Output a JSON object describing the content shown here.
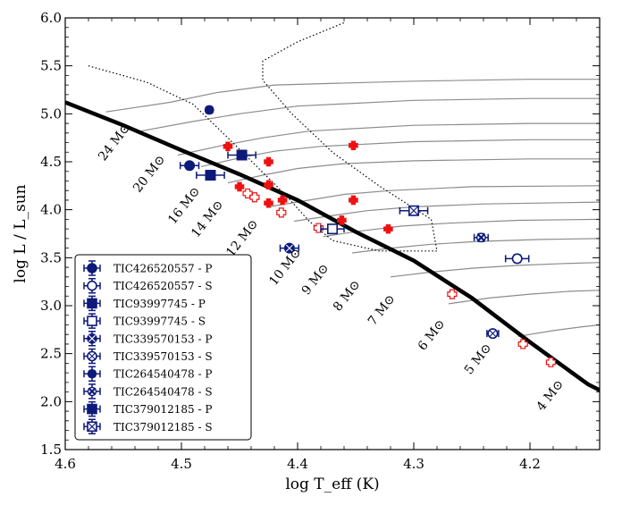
{
  "chart_data": {
    "type": "scatter",
    "title": "",
    "xlabel": "log T_eff (K)",
    "ylabel": "log L / L_sun",
    "xlim": [
      4.6,
      4.14
    ],
    "ylim": [
      1.5,
      6.0
    ],
    "x_ticks": [
      "4.6",
      "4.5",
      "4.4",
      "4.3",
      "4.2"
    ],
    "x_tick_values": [
      4.6,
      4.5,
      4.4,
      4.3,
      4.2
    ],
    "y_ticks": [
      "1.5",
      "2.0",
      "2.5",
      "3.0",
      "3.5",
      "4.0",
      "4.5",
      "5.0",
      "5.5",
      "6.0"
    ],
    "y_tick_values": [
      1.5,
      2.0,
      2.5,
      3.0,
      3.5,
      4.0,
      4.5,
      5.0,
      5.5,
      6.0
    ],
    "zams": [
      [
        4.6,
        5.12
      ],
      [
        4.55,
        4.88
      ],
      [
        4.5,
        4.62
      ],
      [
        4.45,
        4.37
      ],
      [
        4.4,
        4.1
      ],
      [
        4.35,
        3.77
      ],
      [
        4.3,
        3.47
      ],
      [
        4.25,
        3.08
      ],
      [
        4.2,
        2.62
      ],
      [
        4.15,
        2.18
      ],
      [
        4.14,
        2.12
      ]
    ],
    "tracks": [
      {
        "mass": "24 M⊙",
        "label_at": [
          4.555,
          4.68
        ],
        "points": [
          [
            4.565,
            5.02
          ],
          [
            4.51,
            5.12
          ],
          [
            4.47,
            5.22
          ],
          [
            4.42,
            5.3
          ],
          [
            4.3,
            5.34
          ],
          [
            4.2,
            5.36
          ],
          [
            4.14,
            5.36
          ]
        ]
      },
      {
        "mass": "20 M⊙",
        "label_at": [
          4.525,
          4.35
        ],
        "points": [
          [
            4.535,
            4.82
          ],
          [
            4.49,
            4.92
          ],
          [
            4.45,
            5.0
          ],
          [
            4.4,
            5.08
          ],
          [
            4.3,
            5.14
          ],
          [
            4.2,
            5.16
          ],
          [
            4.14,
            5.16
          ]
        ]
      },
      {
        "mass": "16 M⊙",
        "label_at": [
          4.495,
          4.02
        ],
        "points": [
          [
            4.503,
            4.57
          ],
          [
            4.465,
            4.67
          ],
          [
            4.43,
            4.75
          ],
          [
            4.39,
            4.82
          ],
          [
            4.3,
            4.88
          ],
          [
            4.2,
            4.9
          ],
          [
            4.14,
            4.9
          ]
        ]
      },
      {
        "mass": "14 M⊙",
        "label_at": [
          4.475,
          3.88
        ],
        "points": [
          [
            4.483,
            4.45
          ],
          [
            4.45,
            4.54
          ],
          [
            4.42,
            4.61
          ],
          [
            4.38,
            4.66
          ],
          [
            4.3,
            4.71
          ],
          [
            4.2,
            4.73
          ],
          [
            4.14,
            4.73
          ]
        ]
      },
      {
        "mass": "12 M⊙",
        "label_at": [
          4.445,
          3.68
        ],
        "points": [
          [
            4.46,
            4.28
          ],
          [
            4.43,
            4.36
          ],
          [
            4.4,
            4.43
          ],
          [
            4.36,
            4.48
          ],
          [
            4.3,
            4.51
          ],
          [
            4.2,
            4.53
          ],
          [
            4.14,
            4.53
          ]
        ]
      },
      {
        "mass": "10 M⊙",
        "label_at": [
          4.408,
          3.38
        ],
        "points": [
          [
            4.425,
            4.03
          ],
          [
            4.39,
            4.1
          ],
          [
            4.36,
            4.16
          ],
          [
            4.32,
            4.2
          ],
          [
            4.25,
            4.24
          ],
          [
            4.14,
            4.25
          ]
        ]
      },
      {
        "mass": "9 M⊙",
        "label_at": [
          4.382,
          3.25
        ],
        "points": [
          [
            4.403,
            3.88
          ],
          [
            4.37,
            3.94
          ],
          [
            4.34,
            3.99
          ],
          [
            4.3,
            4.03
          ],
          [
            4.24,
            4.06
          ],
          [
            4.14,
            4.08
          ]
        ]
      },
      {
        "mass": "8 M⊙",
        "label_at": [
          4.355,
          3.08
        ],
        "points": [
          [
            4.378,
            3.72
          ],
          [
            4.345,
            3.78
          ],
          [
            4.31,
            3.83
          ],
          [
            4.27,
            3.86
          ],
          [
            4.21,
            3.89
          ],
          [
            4.14,
            3.9
          ]
        ]
      },
      {
        "mass": "7 M⊙",
        "label_at": [
          4.325,
          2.93
        ],
        "points": [
          [
            4.353,
            3.55
          ],
          [
            4.32,
            3.6
          ],
          [
            4.285,
            3.64
          ],
          [
            4.245,
            3.67
          ],
          [
            4.19,
            3.69
          ],
          [
            4.14,
            3.7
          ]
        ]
      },
      {
        "mass": "6 M⊙",
        "label_at": [
          4.282,
          2.67
        ],
        "points": [
          [
            4.32,
            3.3
          ],
          [
            4.285,
            3.35
          ],
          [
            4.25,
            3.39
          ],
          [
            4.21,
            3.42
          ],
          [
            4.17,
            3.44
          ],
          [
            4.14,
            3.45
          ]
        ]
      },
      {
        "mass": "5 M⊙",
        "label_at": [
          4.242,
          2.42
        ],
        "points": [
          [
            4.27,
            3.02
          ],
          [
            4.235,
            3.08
          ],
          [
            4.2,
            3.12
          ],
          [
            4.165,
            3.15
          ],
          [
            4.14,
            3.16
          ]
        ]
      },
      {
        "mass": "4 M⊙",
        "label_at": [
          4.18,
          2.04
        ],
        "points": [
          [
            4.21,
            2.68
          ],
          [
            4.18,
            2.74
          ],
          [
            4.155,
            2.78
          ],
          [
            4.14,
            2.8
          ]
        ]
      }
    ],
    "instability_strip": [
      [
        4.58,
        5.5
      ],
      [
        4.53,
        5.33
      ],
      [
        4.49,
        5.1
      ],
      [
        4.46,
        4.75
      ],
      [
        4.435,
        4.45
      ],
      [
        4.41,
        4.15
      ],
      [
        4.39,
        3.88
      ],
      [
        4.37,
        3.68
      ],
      [
        4.33,
        3.57
      ],
      [
        4.28,
        3.57
      ],
      [
        4.285,
        3.9
      ],
      [
        4.33,
        4.25
      ],
      [
        4.37,
        4.6
      ],
      [
        4.405,
        5.0
      ],
      [
        4.43,
        5.35
      ],
      [
        4.43,
        5.55
      ],
      [
        4.4,
        5.75
      ],
      [
        4.36,
        5.95
      ]
    ],
    "reference_filled": [
      [
        4.46,
        4.66
      ],
      [
        4.425,
        4.5
      ],
      [
        4.45,
        4.24
      ],
      [
        4.425,
        4.26
      ],
      [
        4.425,
        4.07
      ],
      [
        4.413,
        4.1
      ],
      [
        4.352,
        4.67
      ],
      [
        4.352,
        4.1
      ],
      [
        4.362,
        3.89
      ],
      [
        4.322,
        3.8
      ]
    ],
    "reference_open": [
      [
        4.443,
        4.17
      ],
      [
        4.437,
        4.13
      ],
      [
        4.414,
        3.97
      ],
      [
        4.382,
        3.81
      ],
      [
        4.267,
        3.12
      ],
      [
        4.206,
        2.6
      ],
      [
        4.182,
        2.41
      ]
    ],
    "legend": [
      "TIC426520557 - P",
      "TIC426520557 - S",
      "TIC93997745 - P",
      "TIC93997745 - S",
      "TIC339570153 - P",
      "TIC339570153 - S",
      "TIC264540478 - P",
      "TIC264540478 - S",
      "TIC379012185 - P",
      "TIC379012185 - S"
    ],
    "series": [
      {
        "name": "TIC426520557 - P",
        "marker": "circle",
        "filled": true,
        "x": 4.493,
        "y": 4.46,
        "xerr": 0.008,
        "yerr": 0.03
      },
      {
        "name": "TIC426520557 - S",
        "marker": "circle",
        "filled": false,
        "x": 4.211,
        "y": 3.49,
        "xerr": 0.01,
        "yerr": 0.04
      },
      {
        "name": "TIC93997745 - P",
        "marker": "square",
        "filled": true,
        "x": 4.448,
        "y": 4.57,
        "xerr": 0.012,
        "yerr": 0.04
      },
      {
        "name": "TIC93997745 - S",
        "marker": "square",
        "filled": false,
        "x": 4.37,
        "y": 3.8,
        "xerr": 0.01,
        "yerr": 0.04
      },
      {
        "name": "TIC339570153 - P",
        "marker": "circle-x",
        "filled": true,
        "x": 4.407,
        "y": 3.6,
        "xerr": 0.008,
        "yerr": 0.03
      },
      {
        "name": "TIC339570153 - S",
        "marker": "circle-x",
        "filled": false,
        "x": 4.232,
        "y": 2.71,
        "xerr": 0.005,
        "yerr": 0.03
      },
      {
        "name": "TIC264540478 - P",
        "marker": "x",
        "filled": true,
        "x": 4.476,
        "y": 5.04,
        "xerr": 0.002,
        "yerr": 0.03
      },
      {
        "name": "TIC264540478 - S",
        "marker": "x",
        "filled": false,
        "x": 4.242,
        "y": 3.71,
        "xerr": 0.006,
        "yerr": 0.04
      },
      {
        "name": "TIC379012185 - P",
        "marker": "square",
        "filled": true,
        "x": 4.475,
        "y": 4.36,
        "xerr": 0.012,
        "yerr": 0.04
      },
      {
        "name": "TIC379012185 - S",
        "marker": "square-x",
        "filled": false,
        "x": 4.3,
        "y": 3.99,
        "xerr": 0.012,
        "yerr": 0.04
      }
    ]
  },
  "colors": {
    "binary": "#0d1a7a",
    "reference": "#ee1111",
    "track": "#8c8c8c",
    "zams": "#000000"
  }
}
